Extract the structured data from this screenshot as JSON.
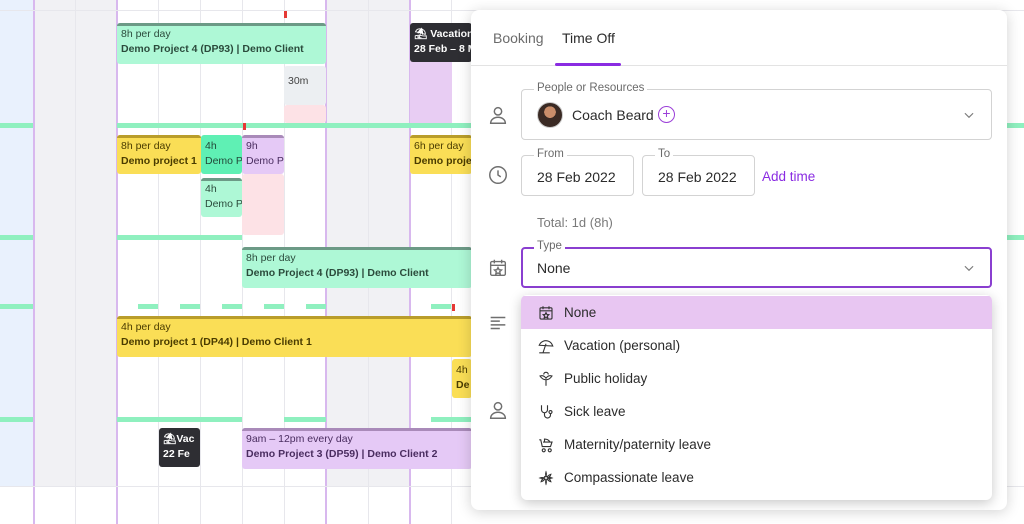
{
  "schedule": {
    "blocks": [
      {
        "id": "b1",
        "line1": "8h per day",
        "line2": "Demo Project 4 (DP93) | Demo Client"
      },
      {
        "id": "b2",
        "line1": "30m",
        "line2": ""
      },
      {
        "id": "b3",
        "line1": "Vacation",
        "line2": "28 Feb – 8 M"
      },
      {
        "id": "b4",
        "line1": "8h per day",
        "line2": "Demo project 1"
      },
      {
        "id": "b5",
        "line1": "4h",
        "line2": "Demo P"
      },
      {
        "id": "b6",
        "line1": "9h",
        "line2": "Demo P"
      },
      {
        "id": "b7",
        "line1": "4h",
        "line2": "Demo P"
      },
      {
        "id": "b8",
        "line1": "6h per day",
        "line2": "Demo proje"
      },
      {
        "id": "b9",
        "line1": "8h per day",
        "line2": "Demo Project 4 (DP93) | Demo Client"
      },
      {
        "id": "b10",
        "line1": "4h per day",
        "line2": "Demo project 1 (DP44) | Demo Client 1"
      },
      {
        "id": "b11",
        "line1": "4h",
        "line2": "De"
      },
      {
        "id": "b12",
        "line1": "Vac",
        "line2": "22 Fe"
      },
      {
        "id": "b13",
        "line1": "9am – 12pm every day",
        "line2": "Demo Project 3 (DP59) | Demo Client 2"
      }
    ]
  },
  "modal": {
    "tabs": [
      {
        "label": "Booking",
        "active": false
      },
      {
        "label": "Time Off",
        "active": true
      }
    ],
    "people": {
      "label": "People or Resources",
      "value": "Coach Beard",
      "add_symbol": "+"
    },
    "dates": {
      "from_label": "From",
      "from_value": "28 Feb 2022",
      "to_label": "To",
      "to_value": "28 Feb 2022",
      "add_time": "Add time",
      "total": "Total: 1d (8h)"
    },
    "type": {
      "label": "Type",
      "value": "None",
      "options": [
        {
          "label": "None",
          "icon": "calendar-star-icon",
          "selected": true
        },
        {
          "label": "Vacation (personal)",
          "icon": "beach-umbrella-icon",
          "selected": false
        },
        {
          "label": "Public holiday",
          "icon": "celebration-icon",
          "selected": false
        },
        {
          "label": "Sick leave",
          "icon": "stethoscope-icon",
          "selected": false
        },
        {
          "label": "Maternity/paternity leave",
          "icon": "stroller-icon",
          "selected": false
        },
        {
          "label": "Compassionate leave",
          "icon": "flower-icon",
          "selected": false
        }
      ]
    },
    "accent_color": "#8a2be2"
  }
}
